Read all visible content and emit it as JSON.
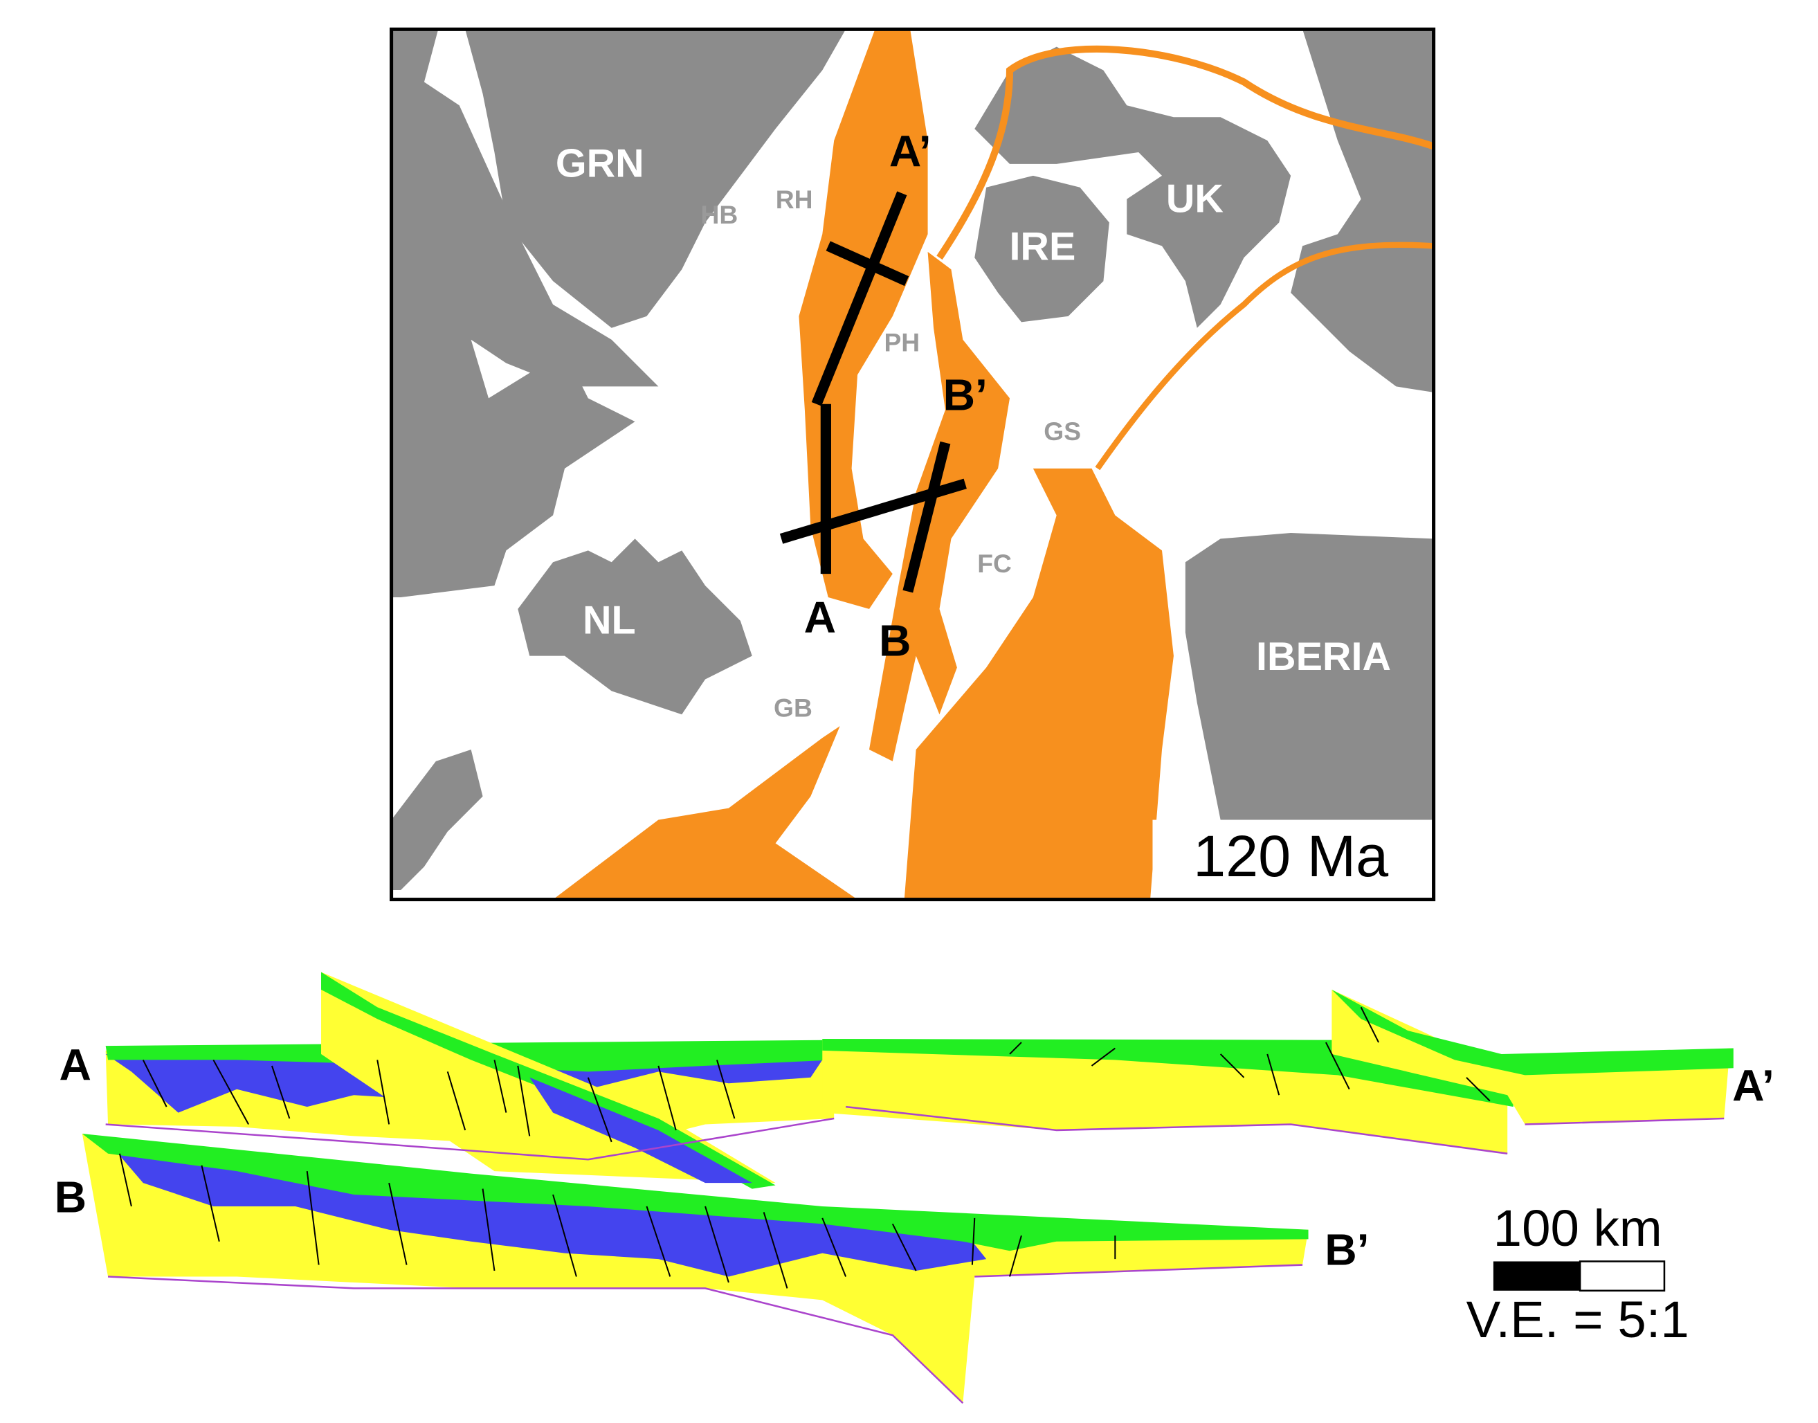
{
  "map": {
    "age": "120 Ma",
    "land_labels": [
      "GRN",
      "UK",
      "IRE",
      "NL",
      "IBERIA"
    ],
    "basin_labels": [
      "HB",
      "RH",
      "PH",
      "GS",
      "FC",
      "GB"
    ],
    "line_labels": [
      "A",
      "A’",
      "B",
      "B’"
    ]
  },
  "sections": {
    "labels": [
      "A",
      "A’",
      "B",
      "B’"
    ]
  },
  "scale_bar": {
    "length": "100 km",
    "vertical_exaggeration": "V.E. = 5:1"
  }
}
